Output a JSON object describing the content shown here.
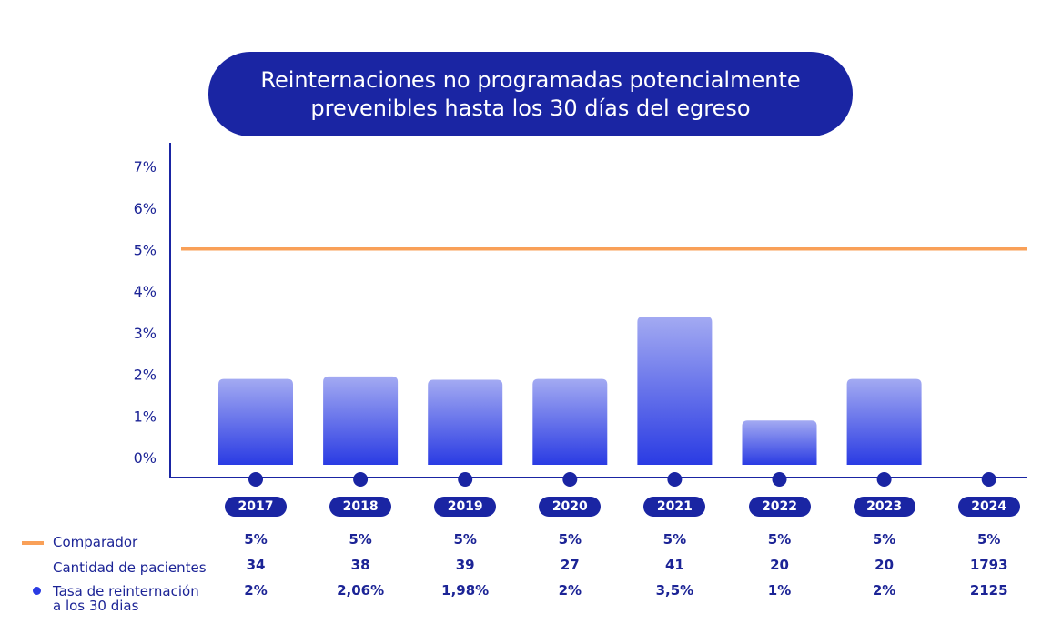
{
  "chart_data": {
    "type": "bar",
    "title": "Reinternaciones no programadas potencialmente prevenibles hasta los 30 días del egreso",
    "categories": [
      "2017",
      "2018",
      "2019",
      "2020",
      "2021",
      "2022",
      "2023",
      "2024"
    ],
    "ylim": [
      0,
      7
    ],
    "yticks": [
      "0%",
      "1%",
      "2%",
      "3%",
      "4%",
      "5%",
      "6%",
      "7%"
    ],
    "series": [
      {
        "name": "Tasa de reinternación a los 30 dias",
        "type": "bar",
        "values": [
          2,
          2.06,
          1.98,
          2,
          3.5,
          1,
          2,
          null
        ]
      },
      {
        "name": "Comparador",
        "type": "line",
        "values": [
          5,
          5,
          5,
          5,
          5,
          5,
          5,
          5
        ]
      }
    ],
    "table": {
      "rows": [
        {
          "label": "Comparador",
          "values": [
            "5%",
            "5%",
            "5%",
            "5%",
            "5%",
            "5%",
            "5%",
            "5%"
          ]
        },
        {
          "label": "Cantidad de pacientes",
          "values": [
            "34",
            "38",
            "39",
            "27",
            "41",
            "20",
            "20",
            "1793"
          ]
        },
        {
          "label_line1": "Tasa de reinternación",
          "label_line2": "a los 30 dias",
          "values": [
            "2%",
            "2,06%",
            "1,98%",
            "2%",
            "3,5%",
            "1%",
            "2%",
            "2125"
          ]
        }
      ]
    },
    "colors": {
      "comparator": "#f9a058",
      "bar_top": "#a3aaf2",
      "bar_bottom": "#2a3be3",
      "dark": "#1a25a3"
    }
  }
}
